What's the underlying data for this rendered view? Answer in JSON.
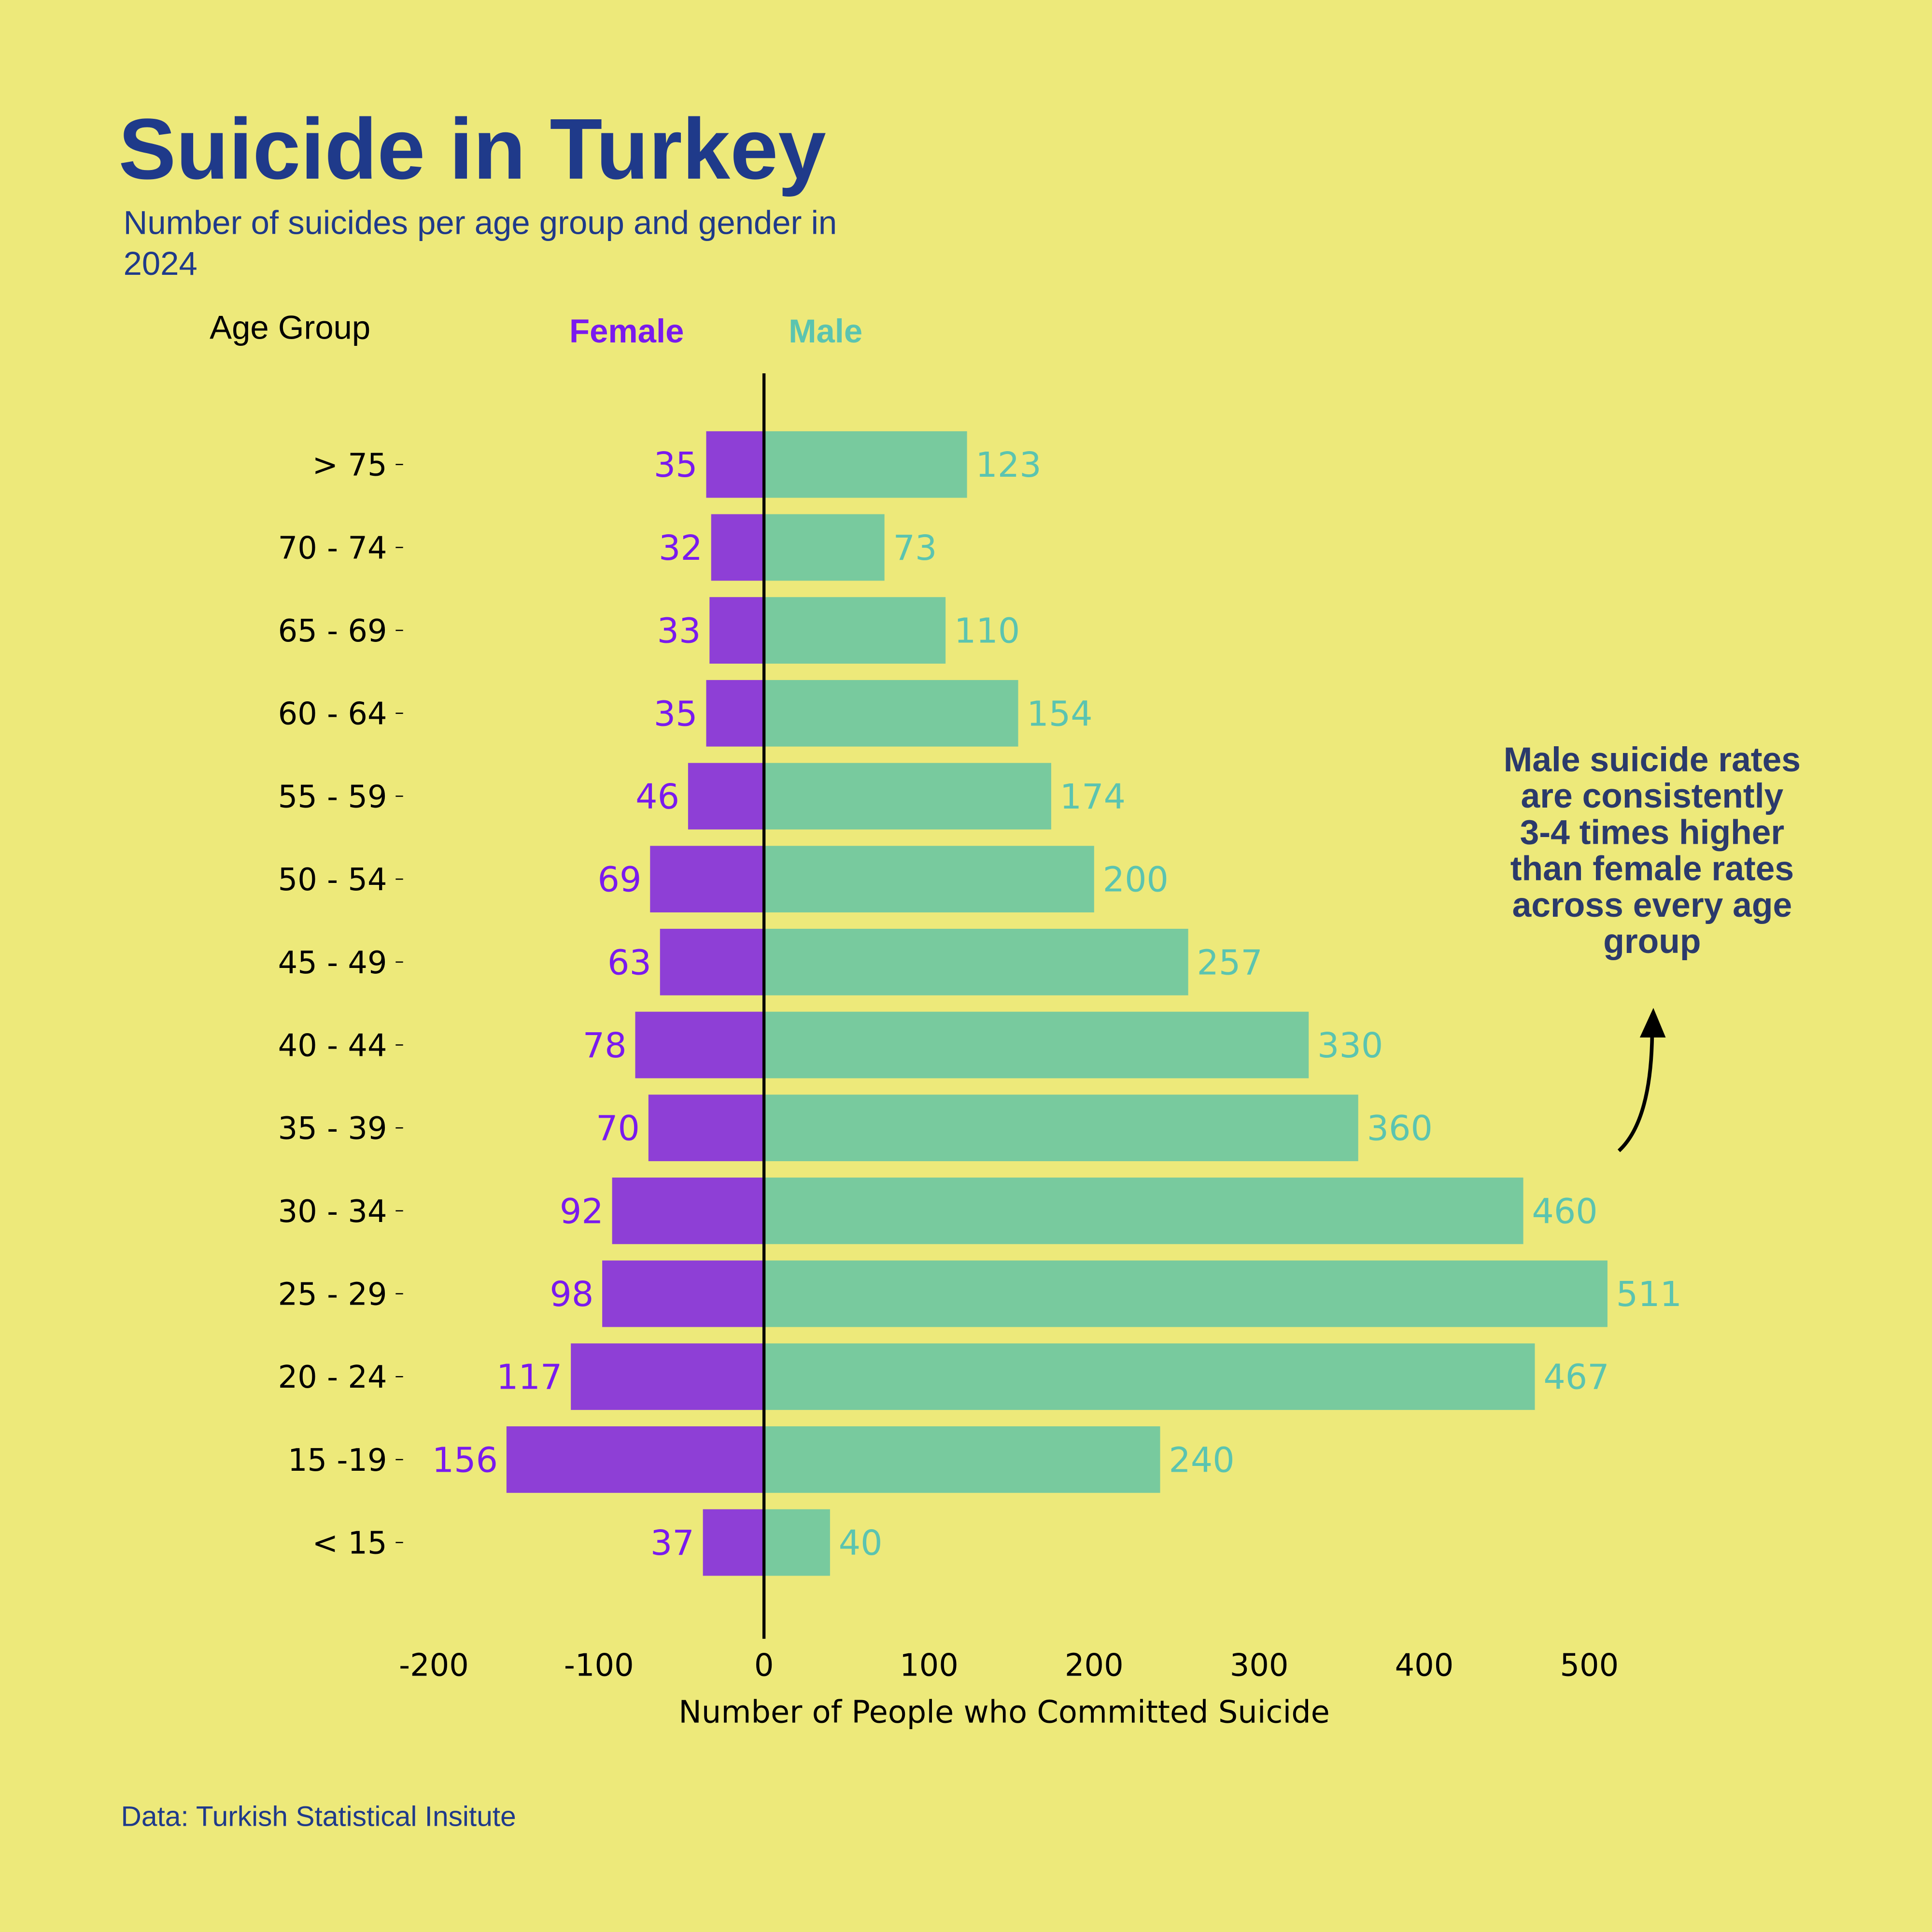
{
  "chart_data": {
    "type": "bar",
    "orientation": "horizontal-diverging",
    "title": "Suicide in Turkey",
    "subtitle_lines": [
      "Number of suicides per age group and gender in",
      "2024"
    ],
    "ylabel": "Age Group",
    "xlabel": "Number of People who Committed Suicide",
    "categories": [
      "> 75",
      "70 - 74",
      "65 - 69",
      "60 - 64",
      "55 - 59",
      "50 - 54",
      "45 - 49",
      "40 - 44",
      "35 - 39",
      "30 - 34",
      "25 - 29",
      "20 - 24",
      "15 -19",
      "< 15"
    ],
    "series": [
      {
        "name": "Female",
        "color": "#8E3FD6",
        "label_color": "#7A1AEE",
        "values": [
          35,
          32,
          33,
          35,
          46,
          69,
          63,
          78,
          70,
          92,
          98,
          117,
          156,
          37
        ]
      },
      {
        "name": "Male",
        "color": "#78CA9E",
        "label_color": "#5BC4B0",
        "values": [
          123,
          73,
          110,
          154,
          174,
          200,
          257,
          330,
          360,
          460,
          511,
          467,
          240,
          40
        ]
      }
    ],
    "xlim": [
      -200,
      530
    ],
    "xticks": [
      -200,
      -100,
      0,
      100,
      200,
      300,
      400,
      500
    ],
    "xtick_labels": [
      "-200",
      "-100",
      "0",
      "100",
      "200",
      "300",
      "400",
      "500"
    ],
    "legend_placement": "top",
    "grid": false,
    "annotation_lines": [
      "Male suicide rates",
      "are consistently",
      "3-4 times higher",
      "than female rates",
      "across every age",
      "group"
    ],
    "source": "Data: Turkish Statistical Insitute"
  }
}
